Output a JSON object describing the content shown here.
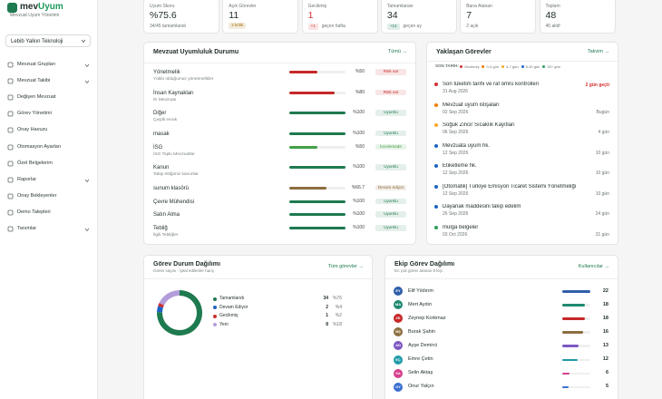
{
  "sidebar": {
    "logo": {
      "brand_a": "mev",
      "brand_b": "Uyum",
      "tagline": "Mevzuat Uyum Yönetimi"
    },
    "org_select": "Lebib Yalkın Teknoloji",
    "nav": [
      {
        "label": "Mevzuat Grupları",
        "expandable": true
      },
      {
        "label": "Mevzuat Takibi",
        "expandable": true
      },
      {
        "label": "Değişen Mevzuat",
        "expandable": false
      },
      {
        "label": "Görev Yönetimi",
        "expandable": false
      },
      {
        "label": "Onay Havuzu",
        "expandable": false
      },
      {
        "label": "Otomasyon Ayarları",
        "expandable": false
      },
      {
        "label": "Özel Belgelerim",
        "expandable": false
      },
      {
        "label": "Raporlar",
        "expandable": true
      },
      {
        "label": "Onay Bekleyenler",
        "expandable": false
      },
      {
        "label": "Demo Talepleri",
        "expandable": false
      },
      {
        "label": "Tanımlar",
        "expandable": true
      }
    ]
  },
  "stats": [
    {
      "label": "Uyum Skoru",
      "value": "%75.6",
      "note": "34/45 tamamlandı"
    },
    {
      "label": "Açık Görevler",
      "value": 11,
      "badge": "2 kritik",
      "badge_color": "#a86b00"
    },
    {
      "label": "Gecikmiş",
      "value": 1,
      "value_color": "#d32f2f",
      "badge": "+1",
      "badge_color": "#d32f2f",
      "note": "geçen hafta"
    },
    {
      "label": "Tamamlanan",
      "value": 34,
      "badge": "+14",
      "badge_color": "#1e7a4f",
      "note": "geçen ay"
    },
    {
      "label": "Bana Atanan",
      "value": 7,
      "note": "2 açık"
    },
    {
      "label": "Toplam",
      "value": 48,
      "note": "45 aktif"
    }
  ],
  "compliance": {
    "title": "Mevzuat Uyumluluk Durumu",
    "link": "Tümü →",
    "rows": [
      {
        "name": "Yönetmelik",
        "subtitle": "Yüklü olduğumuz yönetmelikler",
        "percent": 50,
        "percent_label": "%50",
        "status": "Risk var",
        "color": "#c62828"
      },
      {
        "name": "İnsan Kaynakları",
        "subtitle": "İK Mevzuatı",
        "percent": 80,
        "percent_label": "%80",
        "status": "Risk var",
        "color": "#c62828"
      },
      {
        "name": "Diğer",
        "subtitle": "Çeşitli evrak",
        "percent": 100,
        "percent_label": "%100",
        "status": "Uyumlu",
        "color": "#1e7a4f"
      },
      {
        "name": "masak",
        "percent": 100,
        "percent_label": "%100",
        "status": "Uyumlu",
        "color": "#1e7a4f"
      },
      {
        "name": "İSG",
        "subtitle": "İSG Toplu Mevzuatlar",
        "percent": 50,
        "percent_label": "%50",
        "status": "İncelemede",
        "color": "#43a047"
      },
      {
        "name": "Kanun",
        "subtitle": "Takip ettiğimiz kanunlar",
        "percent": 100,
        "percent_label": "%100",
        "status": "Uyumlu",
        "color": "#1e7a4f"
      },
      {
        "name": "sunum klasörü",
        "percent": 66.7,
        "percent_label": "%66.7",
        "status": "Devam ediyor",
        "color": "#8d6e3f"
      },
      {
        "name": "Çevre Mühendisi",
        "percent": 100,
        "percent_label": "%100",
        "status": "Uyumlu",
        "color": "#1e7a4f"
      },
      {
        "name": "Satın Alma",
        "percent": 100,
        "percent_label": "%100",
        "status": "Uyumlu",
        "color": "#1e7a4f"
      },
      {
        "name": "Tebliğ",
        "subtitle": "İlgili Tebliğler",
        "percent": 100,
        "percent_label": "%100",
        "status": "Uyumlu",
        "color": "#1e7a4f"
      }
    ]
  },
  "deadlines": {
    "title": "Yaklaşan Görevler",
    "link": "Takvim →",
    "legend_title": "SON TARİH:",
    "legend": [
      {
        "label": "Gecikmiş",
        "color": "#d32f2f"
      },
      {
        "label": "0-3 gün",
        "color": "#f57c00"
      },
      {
        "label": "4-7 gün",
        "color": "#f9a825"
      },
      {
        "label": "8-30 gün",
        "color": "#1e63c4"
      },
      {
        "label": "30+ gün",
        "color": "#2e9d5b"
      }
    ],
    "items": [
      {
        "title": "Son tüketim tarihi ve raf ömrü kontrolleri",
        "date": "31 Aug 2026",
        "remaining": "2 gün geçti",
        "color": "#d32f2f",
        "remaining_color": "#d32f2f"
      },
      {
        "title": "Mevzuat uyum istişaları",
        "date": "02 Sep 2026",
        "remaining": "Bugün",
        "color": "#f57c00"
      },
      {
        "title": "Soğuk Zincir Sıcaklık Kayıtları",
        "date": "06 Sep 2026",
        "remaining": "4 gün",
        "color": "#f9a825"
      },
      {
        "title": "Mevzuata uyum hk.",
        "date": "12 Sep 2026",
        "remaining": "10 gün",
        "color": "#1e63c4"
      },
      {
        "title": "Etiketleme hk.",
        "date": "12 Sep 2026",
        "remaining": "10 gün",
        "color": "#1e63c4"
      },
      {
        "title": "[Otomatik] Türkiye Emisyon Ticaret Sistemi Yönetmeliği",
        "date": "12 Sep 2026",
        "remaining": "10 gün",
        "color": "#1e63c4"
      },
      {
        "title": "Dayanak maddesini takip edelim",
        "date": "26 Sep 2026",
        "remaining": "24 gün",
        "color": "#1e63c4"
      },
      {
        "title": "mülga belgeler",
        "date": "03 Oct 2026",
        "remaining": "31 gün",
        "color": "#2e9d5b"
      }
    ]
  },
  "task_status": {
    "title": "Görev Durum Dağılımı",
    "subtitle": "Görev sayısı · İptal edilenler hariç",
    "link": "Tüm görevler →",
    "segments": [
      {
        "name": "Tamamlandı",
        "count": 34,
        "percent_label": "%76",
        "color": "#1e7a4f"
      },
      {
        "name": "Devam Ediyor",
        "count": 2,
        "percent_label": "%4",
        "color": "#1e63c4"
      },
      {
        "name": "Gecikmiş",
        "count": 1,
        "percent_label": "%2",
        "color": "#d32f2f"
      },
      {
        "name": "Yeni",
        "count": 8,
        "percent_label": "%18",
        "color": "#b39ddb"
      }
    ]
  },
  "team": {
    "title": "Ekip Görev Dağılımı",
    "subtitle": "En çok görev atanan 8 kişi",
    "link": "Kullanıcılar →",
    "members": [
      {
        "initials": "EY",
        "name": "Elif Yıldırım",
        "tasks": 22,
        "color": "#2f5fa8"
      },
      {
        "initials": "MA",
        "name": "Mert Aydın",
        "tasks": 18,
        "color": "#1f8a70"
      },
      {
        "initials": "ZK",
        "name": "Zeynep Korkmaz",
        "tasks": 18,
        "color": "#c62828"
      },
      {
        "initials": "BŞ",
        "name": "Burak Şahin",
        "tasks": 16,
        "color": "#8d6e3f"
      },
      {
        "initials": "AD",
        "name": "Ayşe Demirci",
        "tasks": 13,
        "color": "#7e57c2"
      },
      {
        "initials": "EÇ",
        "name": "Emre Çetin",
        "tasks": 12,
        "color": "#1f9aa8"
      },
      {
        "initials": "SA",
        "name": "Selin Aktaş",
        "tasks": 6,
        "color": "#d63f8c"
      },
      {
        "initials": "OY",
        "name": "Onur Yalçın",
        "tasks": 5,
        "color": "#3b6fd1"
      }
    ]
  }
}
